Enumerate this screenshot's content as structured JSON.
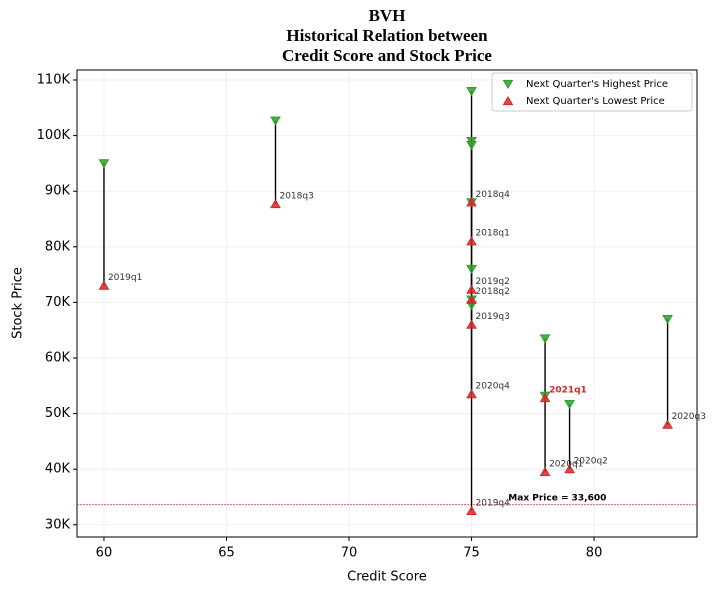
{
  "chart_data": {
    "type": "scatter",
    "title": [
      "BVH",
      "Historical Relation between",
      "Credit Score and Stock Price"
    ],
    "x_label": "Credit Score",
    "y_label": "Stock Price",
    "x": [
      60,
      67,
      75,
      75,
      75,
      75,
      75,
      75,
      75,
      78,
      78,
      79,
      83
    ],
    "labels": [
      "2019q1",
      "2018q3",
      "2018q1",
      "2018q2",
      "2018q4",
      "2019q2",
      "2019q3",
      "2020q4",
      "2019q4",
      "2021q1",
      "2020q1",
      "2020q2",
      "2020q3"
    ],
    "label_colors": [
      "#333333",
      "#333333",
      "#333333",
      "#333333",
      "#333333",
      "#333333",
      "#333333",
      "#333333",
      "#333333",
      "#d62728",
      "#333333",
      "#333333",
      "#333333"
    ],
    "series": [
      {
        "name": "Next Quarter's Highest Price",
        "color": "#2ca02c",
        "marker": "down",
        "values": [
          95000,
          102700,
          108000,
          99000,
          98300,
          88000,
          76000,
          70500,
          69500,
          63500,
          53200,
          51700,
          67000
        ]
      },
      {
        "name": "Next Quarter's Lowest Price",
        "color": "#d62728",
        "marker": "up",
        "values": [
          73000,
          87700,
          81000,
          70500,
          88000,
          72300,
          66000,
          53500,
          32500,
          52800,
          39500,
          40000,
          48000
        ]
      }
    ],
    "reference_line": {
      "value": 33600,
      "label": "Max Price = 33,600",
      "color": "#d62728"
    },
    "xlim": [
      58.9,
      84.2
    ],
    "xticks": [
      60,
      65,
      70,
      75,
      80
    ],
    "ylim": [
      27800,
      111800
    ],
    "yticks": [
      {
        "value": 30000,
        "label": "30K"
      },
      {
        "value": 40000,
        "label": "40K"
      },
      {
        "value": 50000,
        "label": "50K"
      },
      {
        "value": 60000,
        "label": "60K"
      },
      {
        "value": 70000,
        "label": "70K"
      },
      {
        "value": 80000,
        "label": "80K"
      },
      {
        "value": 90000,
        "label": "90K"
      },
      {
        "value": 100000,
        "label": "100K"
      },
      {
        "value": 110000,
        "label": "110K"
      }
    ],
    "grid": true,
    "legend": "upper right"
  }
}
